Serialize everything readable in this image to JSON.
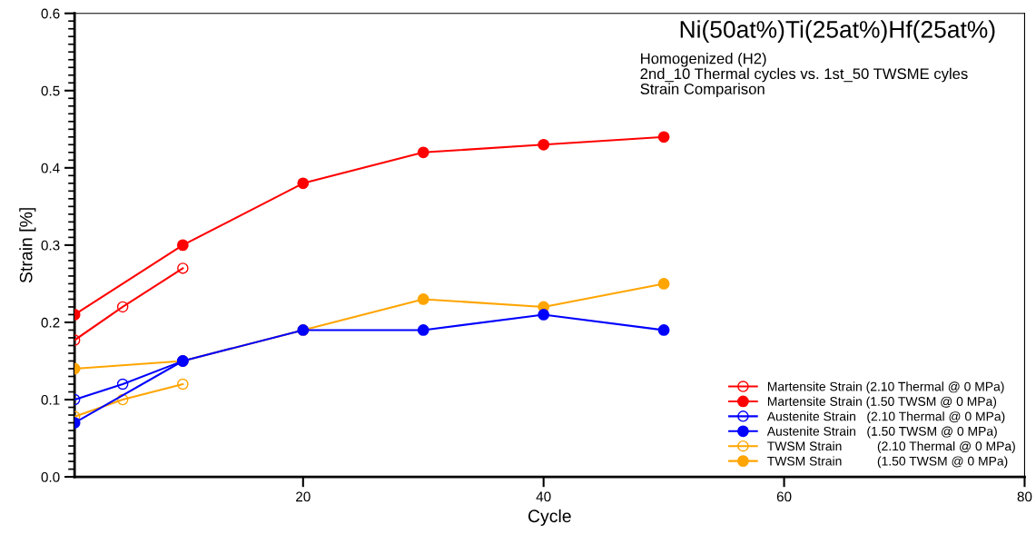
{
  "chart_data": {
    "type": "line",
    "title": "Ni(50at%)Ti(25at%)Hf(25at%)",
    "subtitle": "Homogenized (H2)\n2nd_10 Thermal cycles vs. 1st_50 TWSME cyles\nStrain Comparison",
    "xlabel": "Cycle",
    "ylabel": "Strain [%]",
    "xlim": [
      1,
      80
    ],
    "xticks": [
      20,
      40,
      60,
      80
    ],
    "ylim": [
      0,
      0.6
    ],
    "yticks": [
      {
        "value": 0,
        "label": "0.0"
      },
      0.1,
      0.2,
      0.3,
      0.4,
      0.5,
      0.6
    ],
    "grid": false,
    "legend": "bottom right",
    "marker": "circle",
    "line_style": "solid",
    "series": [
      {
        "name": "Martensite Strain (2.10 Thermal @ 0 MPa)",
        "color": "#ff0000",
        "x": [
          1,
          5,
          10
        ],
        "values": [
          0.177,
          0.22,
          0.27
        ]
      },
      {
        "name": "Martensite Strain (1.50 TWSM @ 0 MPa)",
        "color": "#ff0000",
        "x": [
          1,
          10,
          20,
          30,
          40,
          50
        ],
        "values": [
          0.21,
          0.3,
          0.38,
          0.42,
          0.43,
          0.44
        ]
      },
      {
        "name": "Austenite Strain   (2.10 Thermal @ 0 MPa)",
        "color": "#0000ff",
        "x": [
          1,
          5,
          10
        ],
        "values": [
          0.1,
          0.12,
          0.15
        ]
      },
      {
        "name": "Austenite Strain   (1.50 TWSM @ 0 MPa)",
        "color": "#0000ff",
        "x": [
          1,
          10,
          20,
          30,
          40,
          50
        ],
        "values": [
          0.07,
          0.15,
          0.19,
          0.19,
          0.21,
          0.19
        ]
      },
      {
        "name": "TWSM Strain          (2.10 Thermal @ 0 MPa)",
        "color": "#ffa500",
        "x": [
          1,
          5,
          10
        ],
        "values": [
          0.078,
          0.1,
          0.12
        ]
      },
      {
        "name": "TWSM Strain          (1.50 TWSM @ 0 MPa)",
        "color": "#ffa500",
        "x": [
          1,
          10,
          20,
          30,
          40,
          50
        ],
        "values": [
          0.14,
          0.15,
          0.19,
          0.23,
          0.22,
          0.25
        ]
      }
    ]
  }
}
